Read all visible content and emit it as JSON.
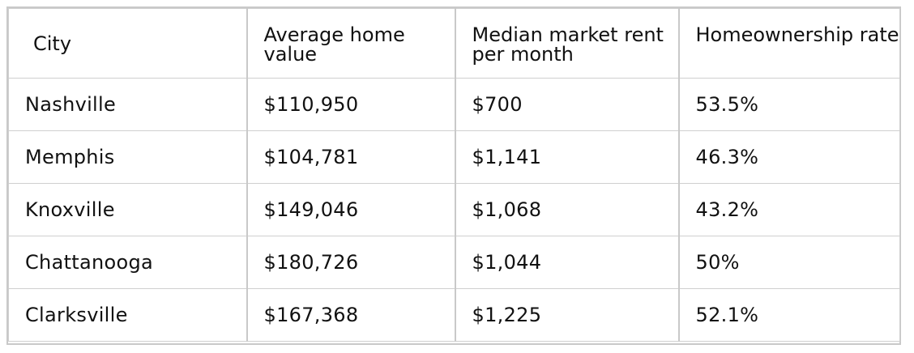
{
  "table": {
    "headers": [
      "City",
      "Average home value",
      "Median market rent per month",
      "Homeownership rate"
    ],
    "rows": [
      [
        "Nashville",
        "$110,950",
        "$700",
        "53.5%"
      ],
      [
        "Memphis",
        "$104,781",
        "$1,141",
        "46.3%"
      ],
      [
        "Knoxville",
        "$149,046",
        "$1,068",
        "43.2%"
      ],
      [
        "Chattanooga",
        "$180,726",
        "$1,044",
        "50%"
      ],
      [
        "Clarksville",
        "$167,368",
        "$1,225",
        "52.1%"
      ]
    ]
  }
}
